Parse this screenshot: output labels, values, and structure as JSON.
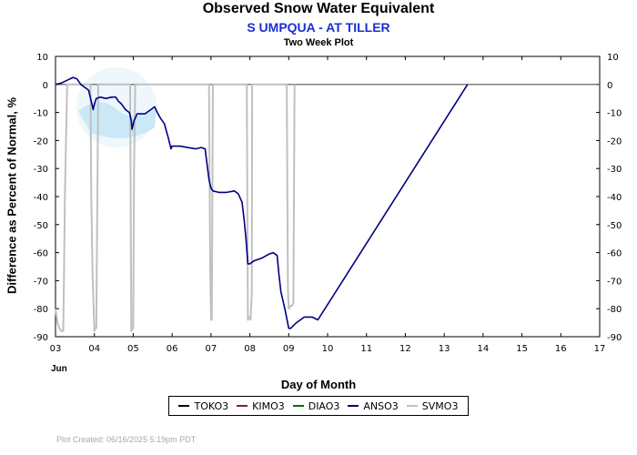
{
  "chart_data": {
    "type": "line",
    "title": "Observed Snow Water Equivalent",
    "subtitle": "S UMPQUA - AT TILLER",
    "subtitle2": "Two Week Plot",
    "xlabel": "Day of Month",
    "ylabel": "Difference as Percent of Normal, %",
    "month_label": "Jun",
    "xlim": [
      3,
      17
    ],
    "ylim": [
      -90,
      10
    ],
    "x_ticks": [
      "03",
      "04",
      "05",
      "06",
      "07",
      "08",
      "09",
      "10",
      "11",
      "12",
      "13",
      "14",
      "15",
      "16",
      "17"
    ],
    "y_ticks": [
      10,
      0,
      -10,
      -20,
      -30,
      -40,
      -50,
      -60,
      -70,
      -80,
      -90
    ],
    "grid": false,
    "legend_position": "bottom",
    "series": [
      {
        "name": "TOKO3",
        "color": "#000000",
        "x": [],
        "y": []
      },
      {
        "name": "KIMO3",
        "color": "#8b1a3a",
        "x": [],
        "y": []
      },
      {
        "name": "DIAO3",
        "color": "#007000",
        "x": [],
        "y": []
      },
      {
        "name": "ANSO3",
        "color": "#000080",
        "x": [
          3.0,
          3.15,
          3.3,
          3.45,
          3.55,
          3.65,
          3.75,
          3.85,
          3.92,
          3.97,
          4.0,
          4.05,
          4.15,
          4.3,
          4.45,
          4.55,
          4.62,
          4.7,
          4.8,
          4.9,
          4.95,
          4.97,
          5.02,
          5.1,
          5.3,
          5.45,
          5.55,
          5.62,
          5.7,
          5.8,
          5.9,
          5.97,
          6.0,
          6.2,
          6.4,
          6.6,
          6.75,
          6.85,
          6.95,
          7.0,
          7.05,
          7.2,
          7.4,
          7.6,
          7.7,
          7.8,
          7.85,
          7.9,
          7.95,
          8.0,
          8.1,
          8.3,
          8.5,
          8.6,
          8.7,
          8.75,
          8.8,
          8.9,
          9.0,
          9.05,
          9.2,
          9.4,
          9.6,
          9.75,
          13.6
        ],
        "y": [
          0,
          0.5,
          1.5,
          2.5,
          2,
          0,
          -1,
          -2,
          -6,
          -9,
          -7,
          -5,
          -4.5,
          -5,
          -4.5,
          -4.5,
          -6,
          -7,
          -9,
          -10,
          -13,
          -16,
          -13,
          -10.5,
          -10.5,
          -9,
          -8,
          -10,
          -12,
          -14,
          -19,
          -23,
          -22,
          -22,
          -22.5,
          -23,
          -22.5,
          -23,
          -34,
          -37,
          -38,
          -38.5,
          -38.5,
          -38,
          -39,
          -42,
          -48,
          -55,
          -64,
          -64,
          -63,
          -62,
          -60.5,
          -60,
          -61,
          -68,
          -74,
          -80,
          -87,
          -87,
          -85,
          -83,
          -83,
          -84,
          0
        ]
      },
      {
        "name": "SVMO3",
        "color": "#c0c0c0",
        "x": [
          3.0,
          3.05,
          3.1,
          3.15,
          3.2,
          3.22,
          3.24,
          3.3,
          3.9,
          3.92,
          3.95,
          4.0,
          4.02,
          4.05,
          4.1,
          4.92,
          4.95,
          4.98,
          5.0,
          5.02,
          5.05,
          6.95,
          6.98,
          7.0,
          7.02,
          7.05,
          7.92,
          7.95,
          7.98,
          8.0,
          8.02,
          8.05,
          8.06,
          8.95,
          8.98,
          9.0,
          9.05,
          9.08,
          9.12,
          9.15
        ],
        "y": [
          -80,
          -85,
          -87,
          -88,
          -88,
          -66,
          -40,
          0,
          0,
          -40,
          -66,
          -88,
          -87,
          -87,
          0,
          0,
          -88,
          -87,
          -87,
          -30,
          0,
          0,
          -66,
          -84,
          -84,
          0,
          0,
          -84,
          -83,
          -83,
          -84,
          -74,
          0,
          0,
          -73,
          -80,
          -79,
          -79,
          -78,
          0
        ]
      }
    ]
  },
  "footer": "Plot Created: 06/16/2025 5:19pm PDT"
}
